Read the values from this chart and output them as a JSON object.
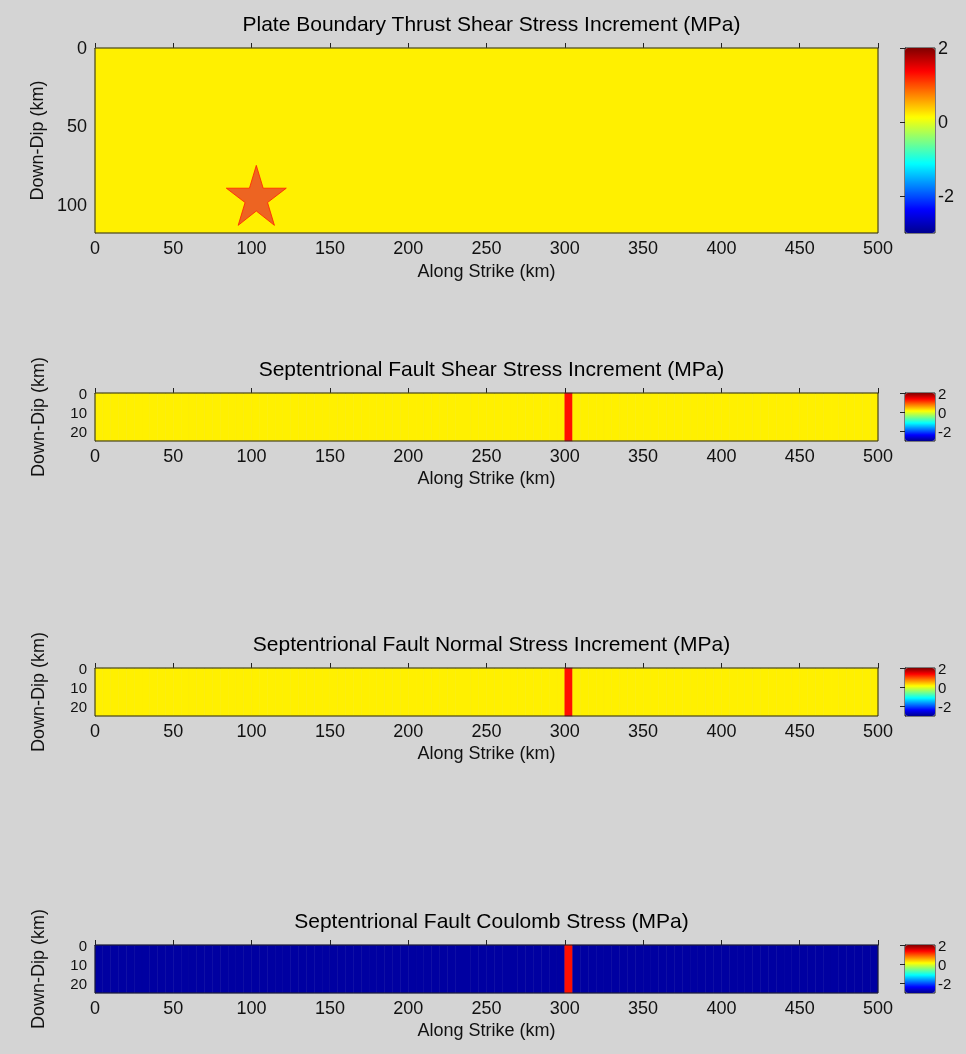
{
  "chart_data": [
    {
      "type": "heatmap",
      "title": "Plate Boundary Thrust Shear Stress Increment (MPa)",
      "xlabel": "Along Strike (km)",
      "ylabel": "Down-Dip (km)",
      "xlim": [
        0,
        500
      ],
      "xticks": [
        0,
        50,
        100,
        150,
        200,
        250,
        300,
        350,
        400,
        450,
        500
      ],
      "ylim": [
        118,
        0
      ],
      "yticks": [
        0,
        50,
        100
      ],
      "clim": [
        -3,
        2
      ],
      "cticks": [
        2,
        0,
        -2
      ],
      "cells": [
        [
          0.2
        ]
      ],
      "series": [
        {
          "type": "scatter",
          "x": [
            103
          ],
          "values": [
            94
          ],
          "color": "#e8412b",
          "marker": "star"
        }
      ]
    },
    {
      "type": "heatmap",
      "title": "Septentrional Fault Shear Stress Increment (MPa)",
      "xlabel": "Along Strike (km)",
      "ylabel": "Down-Dip (km)",
      "xlim": [
        0,
        500
      ],
      "xticks": [
        0,
        50,
        100,
        150,
        200,
        250,
        300,
        350,
        400,
        450,
        500
      ],
      "ylim": [
        25,
        0
      ],
      "yticks": [
        0,
        10,
        20
      ],
      "clim": [
        -3,
        2
      ],
      "cticks": [
        2,
        0,
        -2
      ],
      "cells": [
        [
          0.2,
          0.2,
          0.2,
          0.2,
          0.2,
          0.2,
          0.2,
          0.2,
          0.2,
          0.2,
          0.2,
          0.2,
          0.2,
          0.2,
          0.2,
          0.2,
          0.2,
          0.2,
          0.2,
          0.2,
          0.2,
          0.2,
          0.2,
          0.2,
          0.2,
          0.2,
          0.2,
          0.2,
          0.2,
          0.2,
          0.2,
          0.2,
          0.2,
          0.2,
          0.2,
          0.2,
          0.2,
          0.2,
          0.2,
          0.2,
          0.2,
          0.2,
          0.2,
          0.2,
          0.2,
          0.2,
          0.2,
          0.2,
          0.2,
          0.2,
          0.2,
          0.2,
          0.2,
          0.2,
          0.2,
          0.2,
          0.2,
          0.2,
          0.2,
          0.2,
          1.3,
          0.2,
          0.2,
          0.2,
          0.2,
          0.2,
          0.2,
          0.2,
          0.2,
          0.2,
          0.2,
          0.2,
          0.2,
          0.2,
          0.2,
          0.2,
          0.2,
          0.2,
          0.2,
          0.2,
          0.2,
          0.2,
          0.2,
          0.2,
          0.2,
          0.2,
          0.2,
          0.2,
          0.2,
          0.2,
          0.2,
          0.2,
          0.2,
          0.2,
          0.2,
          0.2,
          0.2,
          0.2,
          0.2,
          0.2
        ]
      ]
    },
    {
      "type": "heatmap",
      "title": "Septentrional Fault Normal Stress Increment (MPa)",
      "xlabel": "Along Strike (km)",
      "ylabel": "Down-Dip (km)",
      "xlim": [
        0,
        500
      ],
      "xticks": [
        0,
        50,
        100,
        150,
        200,
        250,
        300,
        350,
        400,
        450,
        500
      ],
      "ylim": [
        25,
        0
      ],
      "yticks": [
        0,
        10,
        20
      ],
      "clim": [
        -3,
        2
      ],
      "cticks": [
        2,
        0,
        -2
      ],
      "cells": [
        [
          0.2,
          0.2,
          0.2,
          0.2,
          0.2,
          0.2,
          0.2,
          0.2,
          0.2,
          0.2,
          0.2,
          0.2,
          0.2,
          0.2,
          0.2,
          0.2,
          0.2,
          0.2,
          0.2,
          0.2,
          0.2,
          0.2,
          0.2,
          0.2,
          0.2,
          0.2,
          0.2,
          0.2,
          0.2,
          0.2,
          0.2,
          0.2,
          0.2,
          0.2,
          0.2,
          0.2,
          0.2,
          0.2,
          0.2,
          0.2,
          0.2,
          0.2,
          0.2,
          0.2,
          0.2,
          0.2,
          0.2,
          0.2,
          0.2,
          0.2,
          0.2,
          0.2,
          0.2,
          0.2,
          0.2,
          0.2,
          0.2,
          0.2,
          0.2,
          0.2,
          1.3,
          0.2,
          0.2,
          0.2,
          0.2,
          0.2,
          0.2,
          0.2,
          0.2,
          0.2,
          0.2,
          0.2,
          0.2,
          0.2,
          0.2,
          0.2,
          0.2,
          0.2,
          0.2,
          0.2,
          0.2,
          0.2,
          0.2,
          0.2,
          0.2,
          0.2,
          0.2,
          0.2,
          0.2,
          0.2,
          0.2,
          0.2,
          0.2,
          0.2,
          0.2,
          0.2,
          0.2,
          0.2,
          0.2,
          0.2
        ]
      ]
    },
    {
      "type": "heatmap",
      "title": "Septentrional Fault Coulomb Stress (MPa)",
      "xlabel": "Along Strike (km)",
      "ylabel": "Down-Dip (km)",
      "xlim": [
        0,
        500
      ],
      "xticks": [
        0,
        50,
        100,
        150,
        200,
        250,
        300,
        350,
        400,
        450,
        500
      ],
      "ylim": [
        25,
        0
      ],
      "yticks": [
        0,
        10,
        20
      ],
      "clim": [
        -3,
        2
      ],
      "cticks": [
        2,
        0,
        -2
      ],
      "cells": [
        [
          -2.9,
          -2.9,
          -2.9,
          -2.9,
          -2.9,
          -2.9,
          -2.9,
          -2.9,
          -2.9,
          -2.9,
          -2.9,
          -2.9,
          -2.9,
          -2.9,
          -2.9,
          -2.9,
          -2.9,
          -2.9,
          -2.9,
          -2.9,
          -2.9,
          -2.9,
          -2.9,
          -2.9,
          -2.9,
          -2.9,
          -2.9,
          -2.9,
          -2.9,
          -2.9,
          -2.9,
          -2.9,
          -2.9,
          -2.9,
          -2.9,
          -2.9,
          -2.9,
          -2.9,
          -2.9,
          -2.9,
          -2.9,
          -2.9,
          -2.9,
          -2.9,
          -2.9,
          -2.9,
          -2.9,
          -2.9,
          -2.9,
          -2.9,
          -2.9,
          -2.9,
          -2.9,
          -2.9,
          -2.9,
          -2.9,
          -2.9,
          -2.9,
          -2.9,
          -2.9,
          1.3,
          -2.9,
          -2.9,
          -2.9,
          -2.9,
          -2.9,
          -2.9,
          -2.9,
          -2.9,
          -2.9,
          -2.9,
          -2.9,
          -2.9,
          -2.9,
          -2.9,
          -2.9,
          -2.9,
          -2.9,
          -2.9,
          -2.9,
          -2.9,
          -2.9,
          -2.9,
          -2.9,
          -2.9,
          -2.9,
          -2.9,
          -2.9,
          -2.9,
          -2.9,
          -2.9,
          -2.9,
          -2.9,
          -2.9,
          -2.9,
          -2.9,
          -2.9,
          -2.9,
          -2.9,
          -2.9
        ]
      ]
    }
  ]
}
